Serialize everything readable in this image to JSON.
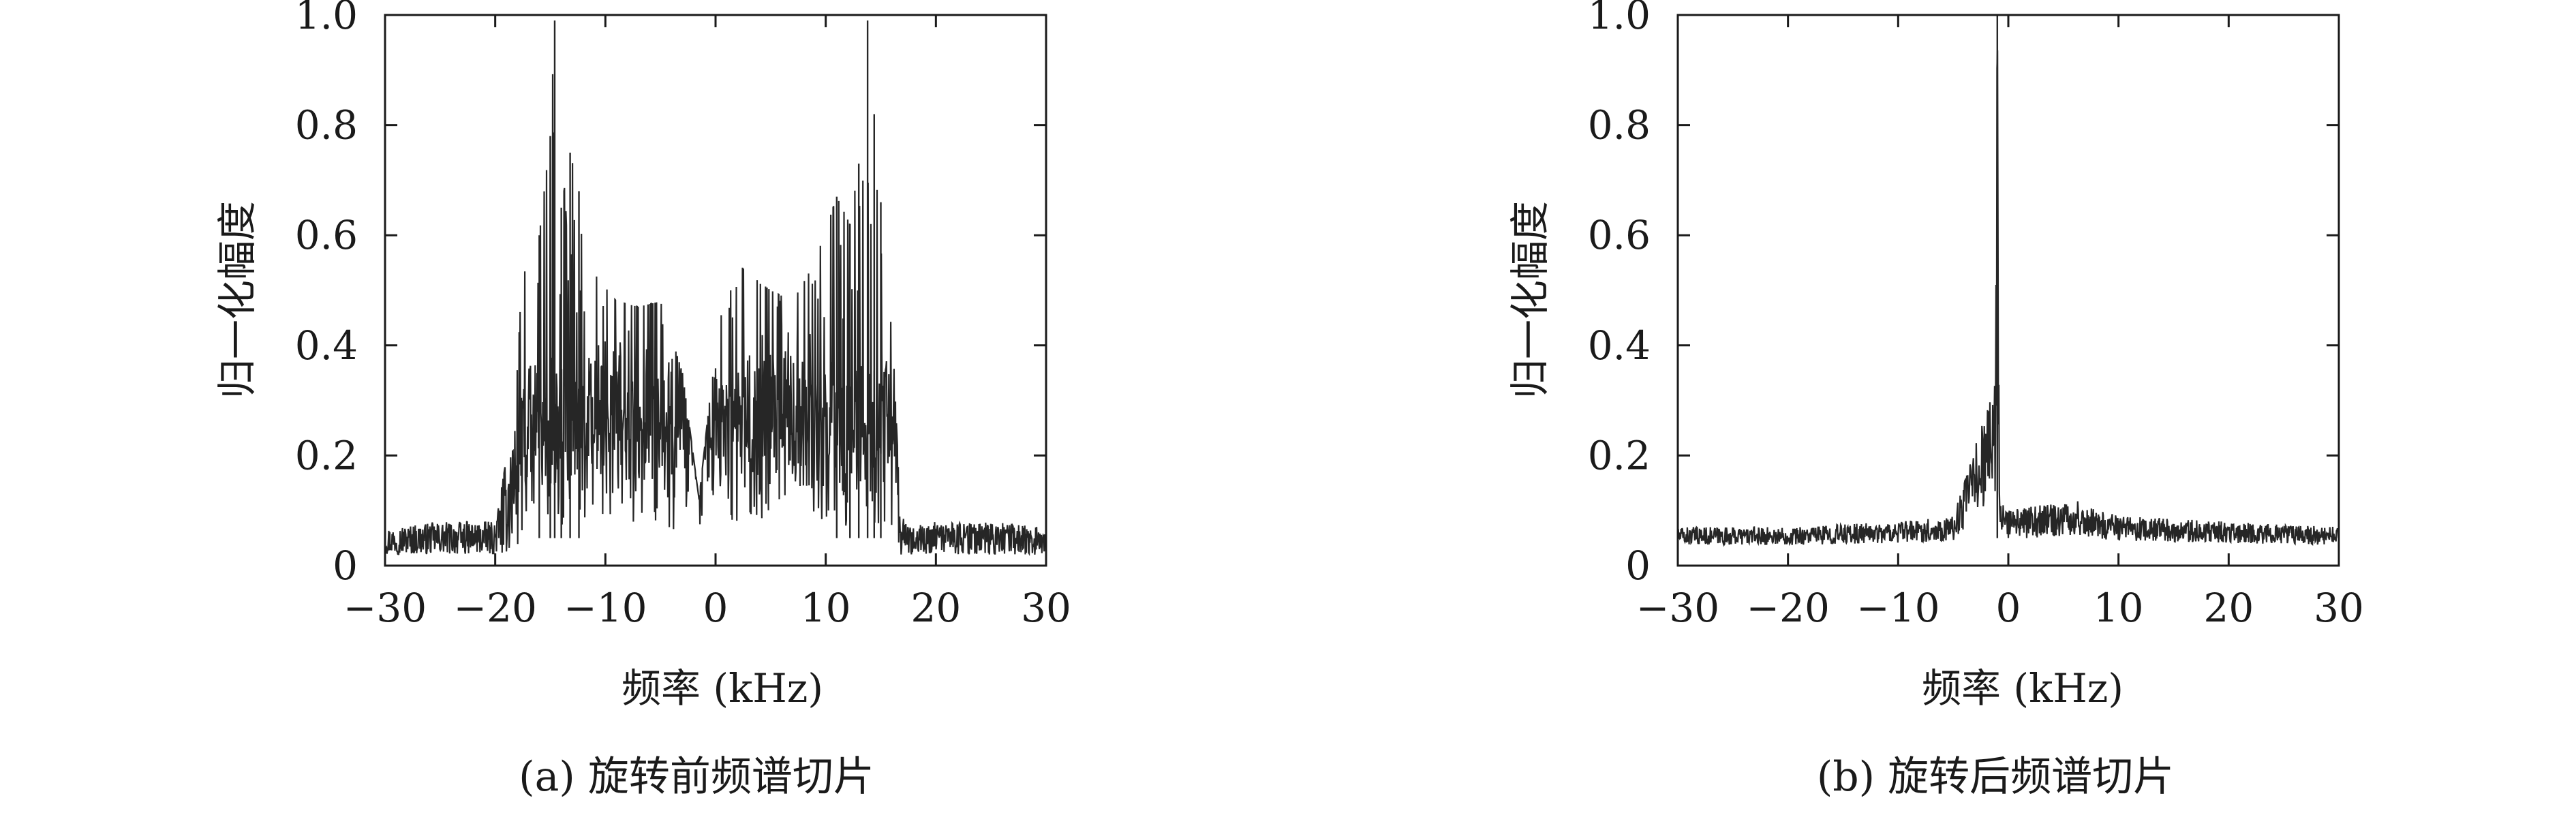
{
  "style": {
    "line_color": "#262626",
    "frame_color": "#1a1a1a",
    "background": "#ffffff"
  },
  "panels": [
    {
      "caption": "(a) 旋转前频谱切片",
      "xlabel": "频率 (kHz)",
      "ylabel": "归一化幅度"
    },
    {
      "caption": "(b) 旋转后频谱切片",
      "xlabel": "频率 (kHz)",
      "ylabel": "归一化幅度"
    }
  ],
  "chart_data": [
    {
      "type": "line",
      "title": "",
      "caption": "(a) 旋转前频谱切片",
      "xlabel": "频率 (kHz)",
      "ylabel": "归一化幅度",
      "xlim": [
        -30,
        30
      ],
      "ylim": [
        0,
        1.0
      ],
      "xticks": [
        -30,
        -20,
        -10,
        0,
        10,
        20,
        30
      ],
      "xtick_labels": [
        "−30",
        "−20",
        "−10",
        "0",
        "10",
        "20",
        "30"
      ],
      "yticks": [
        0,
        0.2,
        0.4,
        0.6,
        0.8,
        1.0
      ],
      "ytick_labels": [
        "0",
        "0.2",
        "0.4",
        "0.6",
        "0.8",
        "1.0"
      ],
      "grid": false,
      "series": [
        {
          "description_of_shape": "dense noisy spectrum",
          "x": [
            -30,
            -25,
            -20,
            -18.2,
            -17.6,
            -16,
            -15,
            -14.6,
            -14,
            -13.2,
            -12.4,
            -11,
            -9,
            -7,
            -5,
            -3,
            -1.5,
            0,
            1.5,
            3,
            5,
            7,
            9,
            11,
            12.2,
            13,
            13.8,
            14.4,
            15,
            16,
            16.8,
            17.5,
            20,
            25,
            30
          ],
          "values": [
            0.05,
            0.06,
            0.06,
            0.27,
            0.52,
            0.6,
            0.78,
            0.99,
            0.65,
            0.75,
            0.68,
            0.53,
            0.48,
            0.47,
            0.48,
            0.35,
            0.12,
            0.4,
            0.56,
            0.53,
            0.5,
            0.48,
            0.55,
            0.67,
            0.62,
            0.73,
            0.99,
            0.82,
            0.66,
            0.45,
            0.08,
            0.05,
            0.06,
            0.06,
            0.05
          ]
        }
      ]
    },
    {
      "type": "line",
      "title": "",
      "caption": "(b) 旋转后频谱切片",
      "xlabel": "频率 (kHz)",
      "ylabel": "归一化幅度",
      "xlim": [
        -30,
        30
      ],
      "ylim": [
        0,
        1.0
      ],
      "xticks": [
        -30,
        -20,
        -10,
        0,
        10,
        20,
        30
      ],
      "xtick_labels": [
        "−30",
        "−20",
        "−10",
        "0",
        "10",
        "20",
        "30"
      ],
      "yticks": [
        0,
        0.2,
        0.4,
        0.6,
        0.8,
        1.0
      ],
      "ytick_labels": [
        "0",
        "0.2",
        "0.4",
        "0.6",
        "0.8",
        "1.0"
      ],
      "grid": false,
      "series": [
        {
          "x": [
            -30,
            -20,
            -10,
            -5,
            -1.2,
            -1.0,
            -0.8,
            0,
            3,
            6,
            10,
            20,
            30
          ],
          "values": [
            0.05,
            0.05,
            0.06,
            0.07,
            0.32,
            1.0,
            0.1,
            0.08,
            0.09,
            0.1,
            0.07,
            0.06,
            0.05
          ]
        }
      ]
    }
  ]
}
